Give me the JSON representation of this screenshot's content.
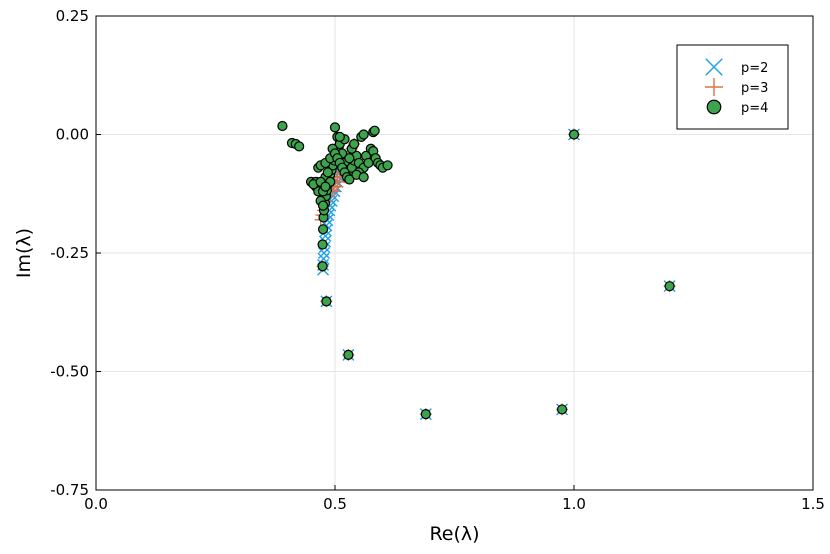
{
  "chart_data": {
    "type": "scatter",
    "title": "",
    "xlabel": "Re(λ)",
    "ylabel": "Im(λ)",
    "xlim": [
      0.0,
      1.5
    ],
    "ylim": [
      -0.75,
      0.25
    ],
    "xticks": [
      0.0,
      0.5,
      1.0,
      1.5
    ],
    "xtick_labels": [
      "0.0",
      "0.5",
      "1.0",
      "1.5"
    ],
    "yticks": [
      0.25,
      0.0,
      -0.25,
      -0.5,
      -0.75
    ],
    "ytick_labels": [
      "0.25",
      "0.00",
      "-0.25",
      "-0.50",
      "-0.75"
    ],
    "grid": true,
    "legend_position": "top-right",
    "series": [
      {
        "name": "p=2",
        "marker": "x",
        "color": "#1ba1ea",
        "points": [
          [
            1.0,
            0.0
          ],
          [
            1.2,
            -0.32
          ],
          [
            0.975,
            -0.58
          ],
          [
            0.69,
            -0.59
          ],
          [
            0.528,
            -0.465
          ],
          [
            0.482,
            -0.352
          ],
          [
            0.475,
            -0.285
          ],
          [
            0.475,
            -0.275
          ],
          [
            0.476,
            -0.262
          ],
          [
            0.477,
            -0.25
          ],
          [
            0.478,
            -0.238
          ],
          [
            0.479,
            -0.226
          ],
          [
            0.48,
            -0.214
          ],
          [
            0.481,
            -0.203
          ],
          [
            0.482,
            -0.192
          ],
          [
            0.484,
            -0.181
          ],
          [
            0.486,
            -0.17
          ],
          [
            0.488,
            -0.16
          ],
          [
            0.49,
            -0.15
          ],
          [
            0.493,
            -0.14
          ],
          [
            0.496,
            -0.13
          ],
          [
            0.499,
            -0.12
          ],
          [
            0.502,
            -0.11
          ],
          [
            0.505,
            -0.1
          ],
          [
            0.508,
            -0.09
          ],
          [
            0.511,
            -0.08
          ],
          [
            0.514,
            -0.07
          ],
          [
            0.517,
            -0.06
          ],
          [
            0.52,
            -0.05
          ],
          [
            0.523,
            -0.04
          ]
        ]
      },
      {
        "name": "p=3",
        "marker": "+",
        "color": "#e26f46",
        "points": [
          [
            1.0,
            0.0
          ],
          [
            1.2,
            -0.32
          ],
          [
            0.975,
            -0.58
          ],
          [
            0.69,
            -0.59
          ],
          [
            0.528,
            -0.465
          ],
          [
            0.482,
            -0.352
          ],
          [
            0.474,
            -0.278
          ],
          [
            0.47,
            -0.18
          ],
          [
            0.472,
            -0.17
          ],
          [
            0.475,
            -0.16
          ],
          [
            0.478,
            -0.15
          ],
          [
            0.482,
            -0.14
          ],
          [
            0.486,
            -0.13
          ],
          [
            0.49,
            -0.12
          ],
          [
            0.495,
            -0.11
          ],
          [
            0.5,
            -0.1
          ],
          [
            0.505,
            -0.09
          ],
          [
            0.51,
            -0.08
          ],
          [
            0.515,
            -0.07
          ],
          [
            0.52,
            -0.06
          ],
          [
            0.525,
            -0.05
          ],
          [
            0.53,
            -0.04
          ],
          [
            0.535,
            -0.03
          ],
          [
            0.54,
            -0.02
          ],
          [
            0.51,
            -0.1
          ],
          [
            0.52,
            -0.09
          ],
          [
            0.505,
            -0.11
          ],
          [
            0.498,
            -0.12
          ]
        ]
      },
      {
        "name": "p=4",
        "marker": "circle",
        "color": "#3da44d",
        "points": [
          [
            1.0,
            0.0
          ],
          [
            1.2,
            -0.32
          ],
          [
            0.975,
            -0.58
          ],
          [
            0.69,
            -0.59
          ],
          [
            0.528,
            -0.465
          ],
          [
            0.482,
            -0.352
          ],
          [
            0.474,
            -0.278
          ],
          [
            0.474,
            -0.232
          ],
          [
            0.475,
            -0.2
          ],
          [
            0.476,
            -0.175
          ],
          [
            0.477,
            -0.16
          ],
          [
            0.479,
            -0.145
          ],
          [
            0.481,
            -0.13
          ],
          [
            0.483,
            -0.118
          ],
          [
            0.485,
            -0.105
          ],
          [
            0.487,
            -0.095
          ],
          [
            0.49,
            -0.085
          ],
          [
            0.493,
            -0.075
          ],
          [
            0.496,
            -0.065
          ],
          [
            0.499,
            -0.055
          ],
          [
            0.502,
            -0.045
          ],
          [
            0.505,
            -0.035
          ],
          [
            0.508,
            -0.025
          ],
          [
            0.511,
            -0.015
          ],
          [
            0.39,
            0.018
          ],
          [
            0.41,
            -0.018
          ],
          [
            0.418,
            -0.02
          ],
          [
            0.425,
            -0.025
          ],
          [
            0.45,
            -0.1
          ],
          [
            0.46,
            -0.11
          ],
          [
            0.465,
            -0.07
          ],
          [
            0.47,
            -0.065
          ],
          [
            0.48,
            -0.06
          ],
          [
            0.49,
            -0.05
          ],
          [
            0.5,
            0.015
          ],
          [
            0.505,
            -0.005
          ],
          [
            0.51,
            -0.02
          ],
          [
            0.515,
            -0.04
          ],
          [
            0.52,
            -0.06
          ],
          [
            0.525,
            -0.075
          ],
          [
            0.53,
            -0.085
          ],
          [
            0.535,
            -0.07
          ],
          [
            0.54,
            -0.055
          ],
          [
            0.545,
            -0.045
          ],
          [
            0.55,
            -0.06
          ],
          [
            0.56,
            -0.07
          ],
          [
            0.565,
            -0.045
          ],
          [
            0.57,
            -0.06
          ],
          [
            0.575,
            -0.03
          ],
          [
            0.58,
            -0.035
          ],
          [
            0.585,
            -0.05
          ],
          [
            0.59,
            -0.06
          ],
          [
            0.595,
            -0.065
          ],
          [
            0.6,
            -0.07
          ],
          [
            0.61,
            -0.065
          ],
          [
            0.555,
            -0.005
          ],
          [
            0.56,
            0.0
          ],
          [
            0.58,
            0.005
          ],
          [
            0.583,
            0.008
          ],
          [
            0.495,
            -0.03
          ],
          [
            0.5,
            -0.04
          ],
          [
            0.505,
            -0.05
          ],
          [
            0.51,
            -0.06
          ],
          [
            0.515,
            -0.07
          ],
          [
            0.52,
            -0.08
          ],
          [
            0.525,
            -0.09
          ],
          [
            0.53,
            -0.095
          ],
          [
            0.46,
            -0.1
          ],
          [
            0.465,
            -0.12
          ],
          [
            0.47,
            -0.14
          ],
          [
            0.475,
            -0.15
          ],
          [
            0.48,
            -0.09
          ],
          [
            0.485,
            -0.08
          ],
          [
            0.535,
            -0.03
          ],
          [
            0.54,
            -0.02
          ],
          [
            0.52,
            -0.01
          ],
          [
            0.51,
            -0.005
          ],
          [
            0.55,
            -0.08
          ],
          [
            0.545,
            -0.085
          ],
          [
            0.56,
            -0.09
          ],
          [
            0.53,
            -0.05
          ],
          [
            0.49,
            -0.1
          ],
          [
            0.455,
            -0.105
          ],
          [
            0.47,
            -0.1
          ],
          [
            0.475,
            -0.12
          ],
          [
            0.48,
            -0.11
          ]
        ]
      }
    ]
  }
}
